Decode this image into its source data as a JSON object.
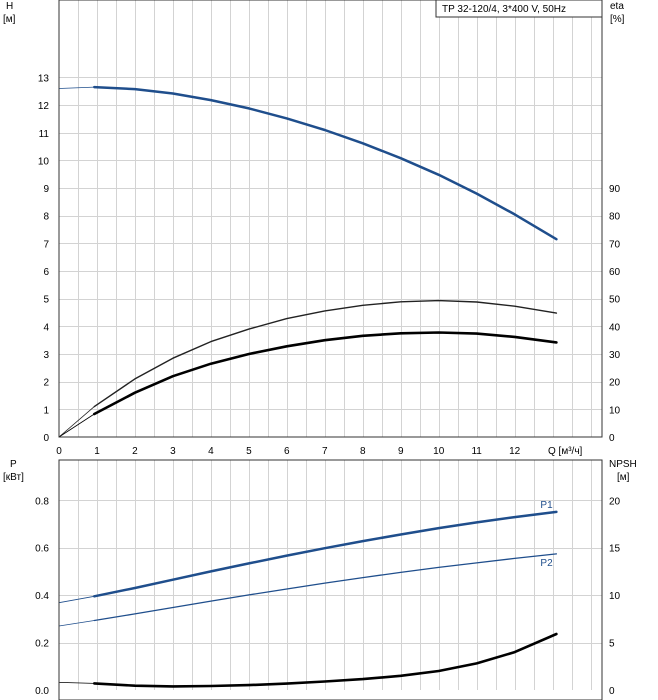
{
  "chart_data": [
    {
      "type": "line",
      "info_box": "TP 32-120/4, 3*400 V, 50Hz",
      "xlabel": "Q [м³/ч]",
      "xlim": [
        0,
        14.3
      ],
      "x_ticks": [
        0,
        1,
        2,
        3,
        4,
        5,
        6,
        7,
        8,
        9,
        10,
        11,
        12
      ],
      "left_axis": {
        "label_line1": "H",
        "label_line2": "[м]",
        "ylim": [
          0,
          15.8
        ],
        "ticks": [
          0,
          1,
          2,
          3,
          4,
          5,
          6,
          7,
          8,
          9,
          10,
          11,
          12,
          13
        ]
      },
      "right_axis": {
        "label_line1": "eta",
        "label_line2": "[%]",
        "ylim": [
          0,
          158
        ],
        "ticks": [
          0,
          10,
          20,
          30,
          40,
          50,
          60,
          70,
          80,
          90
        ]
      },
      "grid": true,
      "series": [
        {
          "axis": "left",
          "color": "#1f4e8c",
          "width": 2.5,
          "x": [
            0.93,
            2,
            3,
            4,
            5,
            6,
            7,
            8,
            9,
            10,
            11,
            12,
            13.1
          ],
          "y": [
            12.65,
            12.58,
            12.42,
            12.18,
            11.88,
            11.52,
            11.1,
            10.62,
            10.08,
            9.48,
            8.8,
            8.05,
            7.15
          ],
          "ext_x": [
            0,
            0.93
          ],
          "ext_y": [
            12.6,
            12.65
          ]
        },
        {
          "axis": "right",
          "color": "#222222",
          "width": 1.4,
          "x": [
            0.93,
            2,
            3,
            4,
            5,
            6,
            7,
            8,
            9,
            10,
            11,
            12,
            13.1
          ],
          "y": [
            11,
            21,
            28.5,
            34.5,
            39,
            42.8,
            45.6,
            47.6,
            48.9,
            49.3,
            48.8,
            47.3,
            44.8
          ],
          "ext_x": [
            0,
            0.93
          ],
          "ext_y": [
            0,
            11
          ]
        },
        {
          "axis": "right",
          "color": "#000000",
          "width": 2.6,
          "x": [
            0.93,
            2,
            3,
            4,
            5,
            6,
            7,
            8,
            9,
            10,
            11,
            12,
            13.1
          ],
          "y": [
            8.3,
            16,
            22,
            26.5,
            30,
            32.8,
            35,
            36.6,
            37.5,
            37.8,
            37.4,
            36.2,
            34.2
          ],
          "ext_x": [
            0,
            0.93
          ],
          "ext_y": [
            0,
            8.3
          ]
        }
      ]
    },
    {
      "type": "line",
      "xlim": [
        0,
        14.3
      ],
      "left_axis": {
        "label_line1": "P",
        "label_line2": "[кВт]",
        "ylim": [
          0,
          0.97
        ],
        "ticks": [
          "0.0",
          "0.2",
          "0.4",
          "0.6",
          "0.8"
        ]
      },
      "right_axis": {
        "label_line1": "NPSH",
        "label_line2": "[м]",
        "ylim": [
          0,
          24.25
        ],
        "ticks": [
          0,
          5,
          10,
          15,
          20
        ]
      },
      "grid": true,
      "series": [
        {
          "name": "P1",
          "axis": "left",
          "color": "#1f4e8c",
          "width": 2.5,
          "x": [
            0.93,
            2,
            3,
            4,
            5,
            6,
            7,
            8,
            9,
            10,
            11,
            12,
            13.1
          ],
          "y": [
            0.395,
            0.43,
            0.465,
            0.5,
            0.534,
            0.567,
            0.598,
            0.628,
            0.656,
            0.683,
            0.707,
            0.729,
            0.751
          ],
          "ext_x": [
            0,
            0.93
          ],
          "ext_y": [
            0.368,
            0.395
          ]
        },
        {
          "name": "P2",
          "axis": "left",
          "color": "#1f4e8c",
          "width": 1.3,
          "x": [
            0.93,
            2,
            3,
            4,
            5,
            6,
            7,
            8,
            9,
            10,
            11,
            12,
            13.1
          ],
          "y": [
            0.293,
            0.321,
            0.348,
            0.375,
            0.401,
            0.426,
            0.451,
            0.474,
            0.496,
            0.517,
            0.536,
            0.555,
            0.574
          ],
          "ext_x": [
            0,
            0.93
          ],
          "ext_y": [
            0.27,
            0.293
          ]
        },
        {
          "axis": "right",
          "color": "#000000",
          "width": 2.6,
          "x": [
            0.93,
            2,
            3,
            4,
            5,
            6,
            7,
            8,
            9,
            10,
            11,
            12,
            13.1
          ],
          "y": [
            0.7,
            0.45,
            0.38,
            0.42,
            0.52,
            0.68,
            0.9,
            1.15,
            1.5,
            2.0,
            2.8,
            4.0,
            5.9
          ],
          "ext_x": [
            0,
            0.93
          ],
          "ext_y": [
            0.8,
            0.7
          ]
        }
      ]
    }
  ]
}
